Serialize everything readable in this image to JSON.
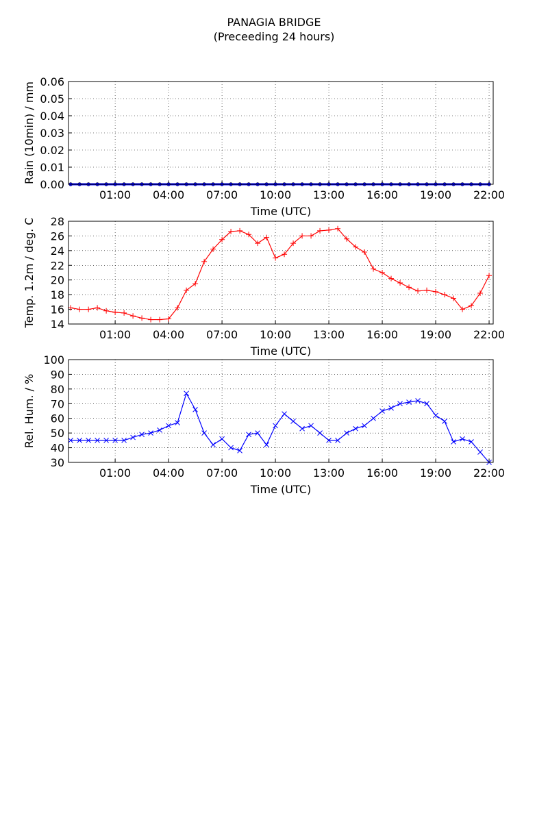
{
  "title": "PANAGIA BRIDGE",
  "subtitle": "(Preceeding 24 hours)",
  "chart_data": [
    {
      "type": "line",
      "xlabel": "Time (UTC)",
      "ylabel": "Rain (10min) / mm",
      "xlim": [
        -1.62,
        22.23
      ],
      "xticks": [
        {
          "value": 1,
          "label": "01:00"
        },
        {
          "value": 4,
          "label": "04:00"
        },
        {
          "value": 7,
          "label": "07:00"
        },
        {
          "value": 10,
          "label": "10:00"
        },
        {
          "value": 13,
          "label": "13:00"
        },
        {
          "value": 16,
          "label": "16:00"
        },
        {
          "value": 19,
          "label": "19:00"
        },
        {
          "value": 22,
          "label": "22:00"
        }
      ],
      "ylim": [
        0,
        0.06
      ],
      "yticks": [
        {
          "value": 0,
          "label": "0.00"
        },
        {
          "value": 0.01,
          "label": "0.01"
        },
        {
          "value": 0.02,
          "label": "0.02"
        },
        {
          "value": 0.03,
          "label": "0.03"
        },
        {
          "value": 0.04,
          "label": "0.04"
        },
        {
          "value": 0.05,
          "label": "0.05"
        },
        {
          "value": 0.06,
          "label": "0.06"
        }
      ],
      "grid": true,
      "marker": "dot",
      "x": [
        -1.5,
        -1,
        -0.5,
        0,
        0.5,
        1,
        1.5,
        2,
        2.5,
        3,
        3.5,
        4,
        4.5,
        5,
        5.5,
        6,
        6.5,
        7,
        7.5,
        8,
        8.5,
        9,
        9.5,
        10,
        10.5,
        11,
        11.5,
        12,
        12.5,
        13,
        13.5,
        14,
        14.5,
        15,
        15.5,
        16,
        16.5,
        17,
        17.5,
        18,
        18.5,
        19,
        19.5,
        20,
        20.5,
        21,
        21.5,
        22
      ],
      "series": [
        {
          "color": "#0000ff",
          "values": [
            0,
            0,
            0,
            0,
            0,
            0,
            0,
            0,
            0,
            0,
            0,
            0,
            0,
            0,
            0,
            0,
            0,
            0,
            0,
            0,
            0,
            0,
            0,
            0,
            0,
            0,
            0,
            0,
            0,
            0,
            0,
            0,
            0,
            0,
            0,
            0,
            0,
            0,
            0,
            0,
            0,
            0,
            0,
            0,
            0,
            0,
            0,
            0
          ]
        }
      ]
    },
    {
      "type": "line",
      "xlabel": "Time (UTC)",
      "ylabel": "Temp. 1.2m / deg. C",
      "xlim": [
        -1.62,
        22.23
      ],
      "xticks": [
        {
          "value": 1,
          "label": "01:00"
        },
        {
          "value": 4,
          "label": "04:00"
        },
        {
          "value": 7,
          "label": "07:00"
        },
        {
          "value": 10,
          "label": "10:00"
        },
        {
          "value": 13,
          "label": "13:00"
        },
        {
          "value": 16,
          "label": "16:00"
        },
        {
          "value": 19,
          "label": "19:00"
        },
        {
          "value": 22,
          "label": "22:00"
        }
      ],
      "ylim": [
        14,
        28
      ],
      "yticks": [
        14,
        16,
        18,
        20,
        22,
        24,
        26,
        28
      ],
      "grid": true,
      "marker": "plus",
      "x": [
        -1.5,
        -1,
        -0.5,
        0,
        0.5,
        1,
        1.5,
        2,
        2.5,
        3,
        3.5,
        4,
        4.5,
        5,
        5.5,
        6,
        6.5,
        7,
        7.5,
        8,
        8.5,
        9,
        9.5,
        10,
        10.5,
        11,
        11.5,
        12,
        12.5,
        13,
        13.5,
        14,
        14.5,
        15,
        15.5,
        16,
        16.5,
        17,
        17.5,
        18,
        18.5,
        19,
        19.5,
        20,
        20.5,
        21,
        21.5,
        22
      ],
      "series": [
        {
          "color": "#ff0000",
          "values": [
            16.2,
            16.0,
            16.0,
            16.2,
            15.8,
            15.6,
            15.5,
            15.1,
            14.8,
            14.6,
            14.6,
            14.7,
            16.2,
            18.6,
            19.5,
            22.5,
            24.2,
            25.5,
            26.6,
            26.7,
            26.2,
            25.0,
            25.8,
            23.0,
            23.5,
            25.0,
            26.0,
            26.0,
            26.7,
            26.8,
            27.0,
            25.6,
            24.5,
            23.8,
            21.5,
            21.0,
            20.2,
            19.6,
            19.0,
            18.5,
            18.6,
            18.4,
            18.0,
            17.5,
            16.0,
            16.5,
            18.2,
            20.6
          ]
        }
      ]
    },
    {
      "type": "line",
      "xlabel": "Time (UTC)",
      "ylabel": "Rel. Hum. / %",
      "xlim": [
        -1.62,
        22.23
      ],
      "xticks": [
        {
          "value": 1,
          "label": "01:00"
        },
        {
          "value": 4,
          "label": "04:00"
        },
        {
          "value": 7,
          "label": "07:00"
        },
        {
          "value": 10,
          "label": "10:00"
        },
        {
          "value": 13,
          "label": "13:00"
        },
        {
          "value": 16,
          "label": "16:00"
        },
        {
          "value": 19,
          "label": "19:00"
        },
        {
          "value": 22,
          "label": "22:00"
        }
      ],
      "ylim": [
        30,
        100
      ],
      "yticks": [
        30,
        40,
        50,
        60,
        70,
        80,
        90,
        100
      ],
      "grid": true,
      "marker": "cross",
      "x": [
        -1.5,
        -1,
        -0.5,
        0,
        0.5,
        1,
        1.5,
        2,
        2.5,
        3,
        3.5,
        4,
        4.5,
        5,
        5.5,
        6,
        6.5,
        7,
        7.5,
        8,
        8.5,
        9,
        9.5,
        10,
        10.5,
        11,
        11.5,
        12,
        12.5,
        13,
        13.5,
        14,
        14.5,
        15,
        15.5,
        16,
        16.5,
        17,
        17.5,
        18,
        18.5,
        19,
        19.5,
        20,
        20.5,
        21,
        21.5,
        22
      ],
      "series": [
        {
          "color": "#0000ff",
          "values": [
            45,
            45,
            45,
            45,
            45,
            45,
            45,
            47,
            49,
            50,
            52,
            55,
            57,
            77,
            66,
            50,
            42,
            46,
            40,
            38,
            49,
            50,
            42,
            55,
            63,
            58,
            53,
            55,
            50,
            45,
            45,
            50,
            53,
            55,
            60,
            65,
            67,
            70,
            71,
            72,
            70,
            62,
            58,
            44,
            46,
            44,
            37,
            30
          ]
        }
      ]
    }
  ]
}
